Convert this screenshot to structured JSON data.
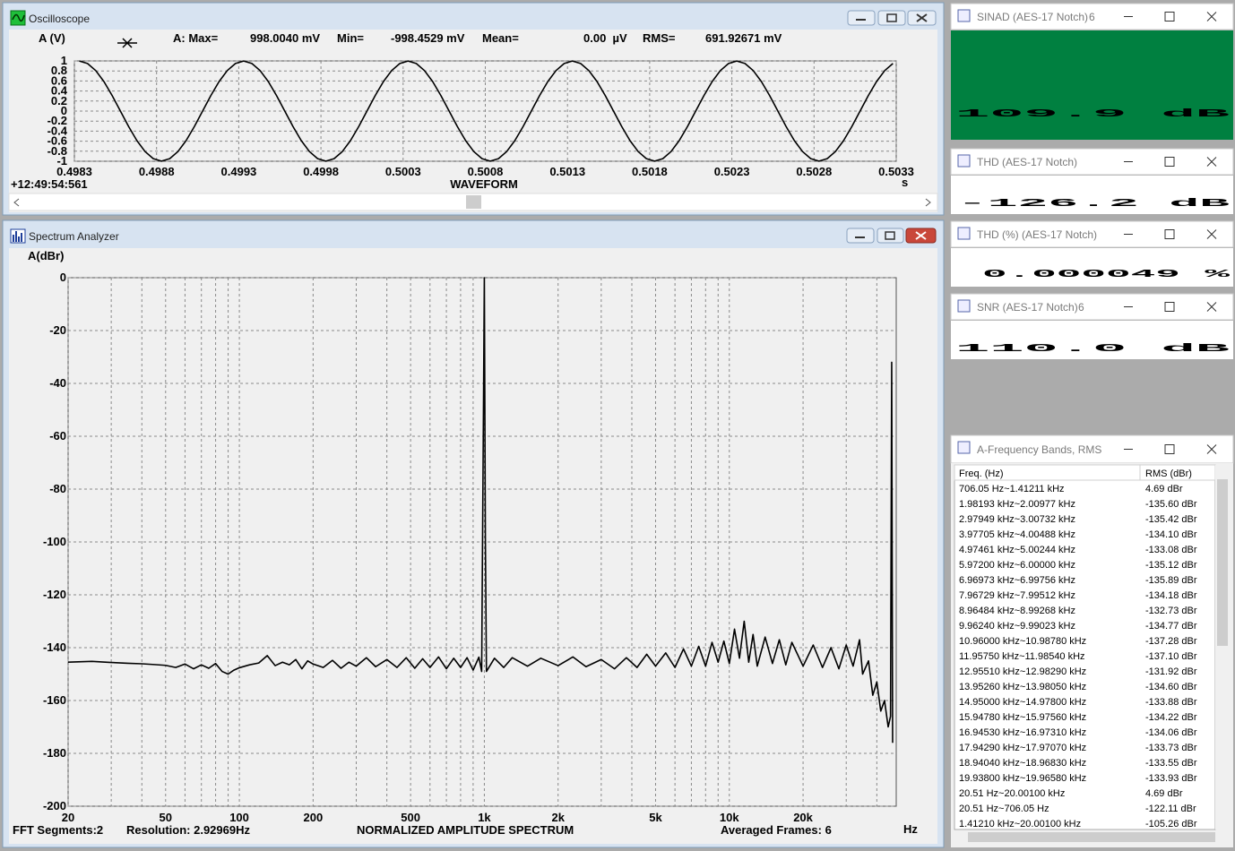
{
  "oscilloscope": {
    "title": "Oscilloscope",
    "readout": {
      "channel": "A (V)",
      "max_label": "A: Max=",
      "max": "998.0040 mV",
      "min_label": "Min=",
      "min": "-998.4529 mV",
      "mean_label": "Mean=",
      "mean": "0.00  µV",
      "rms_label": "RMS=",
      "rms": "691.92671 mV"
    },
    "timestamp": "+12:49:54:561",
    "chart": {
      "type": "line",
      "x_label": "WAVEFORM",
      "x_unit": "s",
      "color": "#000000",
      "grid": true,
      "xlim": [
        0.4983,
        0.5033
      ],
      "xticks": [
        0.4983,
        0.4988,
        0.4993,
        0.4998,
        0.5003,
        0.5008,
        0.5013,
        0.5018,
        0.5023,
        0.5028,
        0.5033
      ],
      "ylim": [
        -1,
        1
      ],
      "yticks": [
        1,
        0.8,
        0.6,
        0.4,
        0.2,
        0,
        -0.2,
        -0.4,
        -0.6,
        -0.8,
        -1
      ],
      "x": [
        0.49833,
        0.49838,
        0.49843,
        0.49848,
        0.49853,
        0.49858,
        0.49863,
        0.49868,
        0.49873,
        0.49878,
        0.49883,
        0.49888,
        0.49893,
        0.49898,
        0.49903,
        0.49908,
        0.49913,
        0.49918,
        0.49923,
        0.49928,
        0.49933,
        0.49938,
        0.49943,
        0.49948,
        0.49953,
        0.49958,
        0.49963,
        0.49968,
        0.49973,
        0.49978,
        0.49983,
        0.49988,
        0.49993,
        0.49998,
        0.50003,
        0.50008,
        0.50013,
        0.50018,
        0.50023,
        0.50028,
        0.50033,
        0.50038,
        0.50043,
        0.50048,
        0.50053,
        0.50058,
        0.50063,
        0.50068,
        0.50073,
        0.50078,
        0.50083,
        0.50088,
        0.50093,
        0.50098,
        0.50103,
        0.50108,
        0.50113,
        0.50118,
        0.50123,
        0.50128,
        0.50133,
        0.50138,
        0.50143,
        0.50148,
        0.50153,
        0.50158,
        0.50163,
        0.50168,
        0.50173,
        0.50178,
        0.50183,
        0.50188,
        0.50193,
        0.50198,
        0.50203,
        0.50208,
        0.50213,
        0.50218,
        0.50223,
        0.50228,
        0.50233,
        0.50238,
        0.50243,
        0.50248,
        0.50253,
        0.50258,
        0.50263,
        0.50268,
        0.50273,
        0.50278,
        0.50283,
        0.50288,
        0.50293,
        0.50298,
        0.50303,
        0.50308,
        0.50313,
        0.50318,
        0.50323,
        0.50328
      ],
      "values": [
        0.998,
        0.949,
        0.807,
        0.587,
        0.308,
        0,
        -0.308,
        -0.587,
        -0.807,
        -0.949,
        -0.998,
        -0.949,
        -0.807,
        -0.587,
        -0.308,
        0,
        0.308,
        0.587,
        0.807,
        0.949,
        0.998,
        0.949,
        0.807,
        0.587,
        0.308,
        0,
        -0.308,
        -0.587,
        -0.807,
        -0.949,
        -0.998,
        -0.949,
        -0.807,
        -0.587,
        -0.308,
        0,
        0.308,
        0.587,
        0.807,
        0.949,
        0.998,
        0.949,
        0.807,
        0.587,
        0.308,
        0,
        -0.308,
        -0.587,
        -0.807,
        -0.949,
        -0.998,
        -0.949,
        -0.807,
        -0.587,
        -0.308,
        0,
        0.308,
        0.587,
        0.807,
        0.949,
        0.998,
        0.949,
        0.807,
        0.587,
        0.308,
        0,
        -0.308,
        -0.587,
        -0.807,
        -0.949,
        -0.998,
        -0.949,
        -0.807,
        -0.587,
        -0.308,
        0,
        0.308,
        0.587,
        0.807,
        0.949,
        0.998,
        0.949,
        0.807,
        0.587,
        0.308,
        0,
        -0.308,
        -0.587,
        -0.807,
        -0.949,
        -0.998,
        -0.949,
        -0.807,
        -0.587,
        -0.308,
        0,
        0.308,
        0.587,
        0.807,
        0.949
      ]
    }
  },
  "spectrum": {
    "title": "Spectrum Analyzer",
    "chart": {
      "type": "line",
      "y_label": "A(dBr)",
      "x_unit": "Hz",
      "log_x": true,
      "grid": true,
      "color": "#000000",
      "xlim": [
        20,
        48000
      ],
      "xticks": [
        20,
        50,
        100,
        200,
        500,
        {
          "value": 1000,
          "label": "1k"
        },
        {
          "value": 2000,
          "label": "2k"
        },
        {
          "value": 5000,
          "label": "5k"
        },
        {
          "value": 10000,
          "label": "10k"
        },
        {
          "value": 20000,
          "label": "20k"
        }
      ],
      "xminorticks": [
        30,
        40,
        60,
        70,
        80,
        90,
        300,
        400,
        600,
        700,
        800,
        900,
        3000,
        4000,
        6000,
        7000,
        8000,
        9000,
        30000,
        40000
      ],
      "ylim": [
        -200,
        0
      ],
      "yticks": [
        0,
        -20,
        -40,
        -60,
        -80,
        -100,
        -120,
        -140,
        -160,
        -180,
        -200
      ],
      "x": [
        20,
        25,
        30,
        35,
        40,
        45,
        50,
        55,
        60,
        65,
        70,
        75,
        80,
        85,
        90,
        95,
        100,
        110,
        120,
        130,
        140,
        150,
        160,
        170,
        180,
        190,
        200,
        220,
        240,
        260,
        280,
        300,
        330,
        360,
        400,
        440,
        480,
        520,
        560,
        600,
        650,
        700,
        750,
        800,
        850,
        900,
        950,
        975,
        990,
        1000,
        1010,
        1020,
        1100,
        1200,
        1300,
        1500,
        1700,
        2000,
        2300,
        2600,
        3000,
        3400,
        3800,
        4200,
        4600,
        5000,
        5500,
        6000,
        6500,
        7000,
        7500,
        8000,
        8500,
        9000,
        9500,
        10000,
        10500,
        11000,
        11500,
        12000,
        12500,
        13000,
        14000,
        15000,
        16000,
        17000,
        18000,
        20000,
        22000,
        24000,
        26000,
        28000,
        30000,
        32000,
        34000,
        35000,
        37000,
        38500,
        40000,
        41500,
        43000,
        44500,
        45500,
        46000,
        46400
      ],
      "values": [
        -145.5,
        -145.2,
        -145.6,
        -145.9,
        -146.1,
        -146.4,
        -146.7,
        -147.5,
        -146.2,
        -148,
        -146.5,
        -147.8,
        -146,
        -149,
        -150,
        -148.5,
        -147.6,
        -146.5,
        -145.8,
        -143,
        -146.8,
        -145.5,
        -146.5,
        -144.5,
        -148,
        -145,
        -146.2,
        -147.5,
        -144.8,
        -147.8,
        -145.5,
        -147,
        -143.8,
        -147.2,
        -144.5,
        -147.5,
        -143.8,
        -147.8,
        -144.2,
        -147.5,
        -143.5,
        -148,
        -144,
        -147.5,
        -143.8,
        -148.5,
        -143.6,
        -149,
        -60,
        0,
        -100,
        -149,
        -144,
        -147.5,
        -143.8,
        -147,
        -144,
        -146.8,
        -143.5,
        -147.2,
        -144.5,
        -148,
        -143.8,
        -147.5,
        -142.5,
        -147,
        -142,
        -147.5,
        -140.5,
        -147,
        -139.5,
        -147,
        -138,
        -145.5,
        -137.5,
        -146,
        -133,
        -144,
        -130,
        -145.5,
        -135,
        -147,
        -136,
        -146,
        -137,
        -146.5,
        -138,
        -147,
        -139,
        -147.5,
        -140,
        -148,
        -139,
        -147,
        -137,
        -150,
        -145,
        -158,
        -153,
        -164,
        -160,
        -170,
        -166,
        -32,
        -176
      ]
    },
    "footer": {
      "segments": "FFT Segments:2",
      "resolution": "Resolution: 2.92969Hz",
      "mode": "NORMALIZED AMPLITUDE SPECTRUM",
      "frames": "Averaged Frames: 6"
    }
  },
  "meters": [
    {
      "title": "SINAD (AES-17 Notch)",
      "channel": "6",
      "value": "109.9 dB",
      "background": "#008040"
    },
    {
      "title": "THD (AES-17 Notch)",
      "value": "-126.2 dB",
      "background": "#ffffff"
    },
    {
      "title": "THD (%) (AES-17 Notch)",
      "value": "0.000049 %",
      "background": "#ffffff"
    },
    {
      "title": "SNR (AES-17 Notch)",
      "channel": "6",
      "value": "110.0 dB",
      "background": "#ffffff"
    }
  ],
  "bands": {
    "title": "A-Frequency Bands, RMS",
    "columns": [
      "Freq. (Hz)",
      "RMS (dBr)"
    ],
    "rows": [
      [
        "706.05 Hz~1.41211 kHz",
        "4.69 dBr"
      ],
      [
        "1.98193 kHz~2.00977 kHz",
        "-135.60 dBr"
      ],
      [
        "2.97949 kHz~3.00732 kHz",
        "-135.42 dBr"
      ],
      [
        "3.97705 kHz~4.00488 kHz",
        "-134.10 dBr"
      ],
      [
        "4.97461 kHz~5.00244 kHz",
        "-133.08 dBr"
      ],
      [
        "5.97200 kHz~6.00000 kHz",
        "-135.12 dBr"
      ],
      [
        "6.96973 kHz~6.99756 kHz",
        "-135.89 dBr"
      ],
      [
        "7.96729 kHz~7.99512 kHz",
        "-134.18 dBr"
      ],
      [
        "8.96484 kHz~8.99268 kHz",
        "-132.73 dBr"
      ],
      [
        "9.96240 kHz~9.99023 kHz",
        "-134.77 dBr"
      ],
      [
        "10.96000 kHz~10.98780 kHz",
        "-137.28 dBr"
      ],
      [
        "11.95750 kHz~11.98540 kHz",
        "-137.10 dBr"
      ],
      [
        "12.95510 kHz~12.98290 kHz",
        "-131.92 dBr"
      ],
      [
        "13.95260 kHz~13.98050 kHz",
        "-134.60 dBr"
      ],
      [
        "14.95000 kHz~14.97800 kHz",
        "-133.88 dBr"
      ],
      [
        "15.94780 kHz~15.97560 kHz",
        "-134.22 dBr"
      ],
      [
        "16.94530 kHz~16.97310 kHz",
        "-134.06 dBr"
      ],
      [
        "17.94290 kHz~17.97070 kHz",
        "-133.73 dBr"
      ],
      [
        "18.94040 kHz~18.96830 kHz",
        "-133.55 dBr"
      ],
      [
        "19.93800 kHz~19.96580 kHz",
        "-133.93 dBr"
      ],
      [
        "20.51 Hz~20.00100 kHz",
        "4.69 dBr"
      ],
      [
        "20.51 Hz~706.05 Hz",
        "-122.11 dBr"
      ],
      [
        "1.41210 kHz~20.00100 kHz",
        "-105.26 dBr"
      ]
    ]
  }
}
